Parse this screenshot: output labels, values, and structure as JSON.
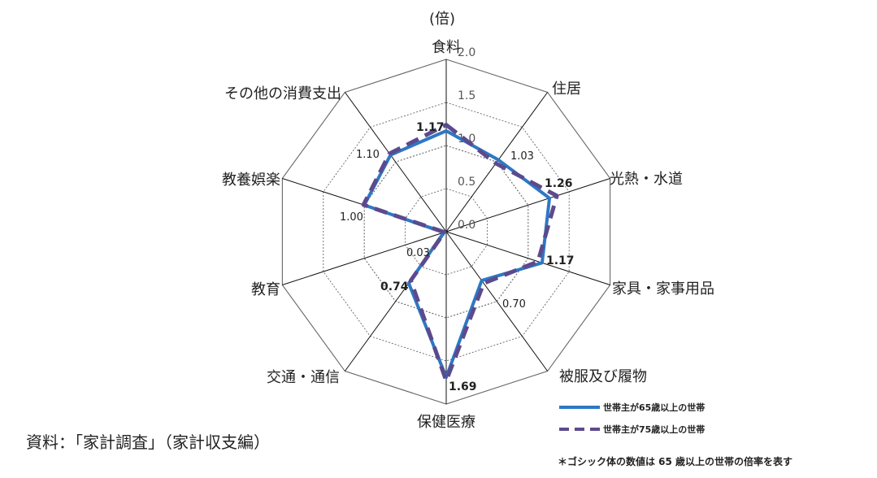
{
  "chart_data": {
    "type": "radar",
    "unit_label": "(倍)",
    "categories": [
      "食料",
      "住居",
      "光熱・水道",
      "家具・家事用品",
      "被服及び履物",
      "保健医療",
      "交通・通信",
      "教育",
      "教養娯楽",
      "その他の消費支出"
    ],
    "axis_ticks": [
      "0.0",
      "0.5",
      "1.0",
      "1.5",
      "2.0"
    ],
    "rlim": [
      0,
      2.0
    ],
    "series": [
      {
        "name": "世帯主が65歳以上の世帯",
        "values": [
          1.17,
          1.03,
          1.26,
          1.17,
          0.7,
          1.69,
          0.74,
          0.03,
          1.0,
          1.1
        ],
        "color": "#2e78c4",
        "style": "solid"
      },
      {
        "name": "世帯主が75歳以上の世帯",
        "values": [
          1.24,
          0.98,
          1.35,
          1.12,
          0.74,
          1.73,
          0.7,
          0.02,
          1.01,
          1.12
        ],
        "color": "#5c4a8e",
        "style": "dashed"
      }
    ],
    "data_labels": [
      "1.17",
      "1.03",
      "1.26",
      "1.17",
      "0.70",
      "1.69",
      "0.74",
      "0.03",
      "1.00",
      "1.10"
    ],
    "legend_position": "bottom-right"
  },
  "source": "資料：「家計調査」（家計収支編）",
  "note": "＊ゴシック体の数値は 65 歳以上の世帯の倍率を表す",
  "colors": {
    "series1": "#2e78c4",
    "series2": "#5c4a8e"
  }
}
